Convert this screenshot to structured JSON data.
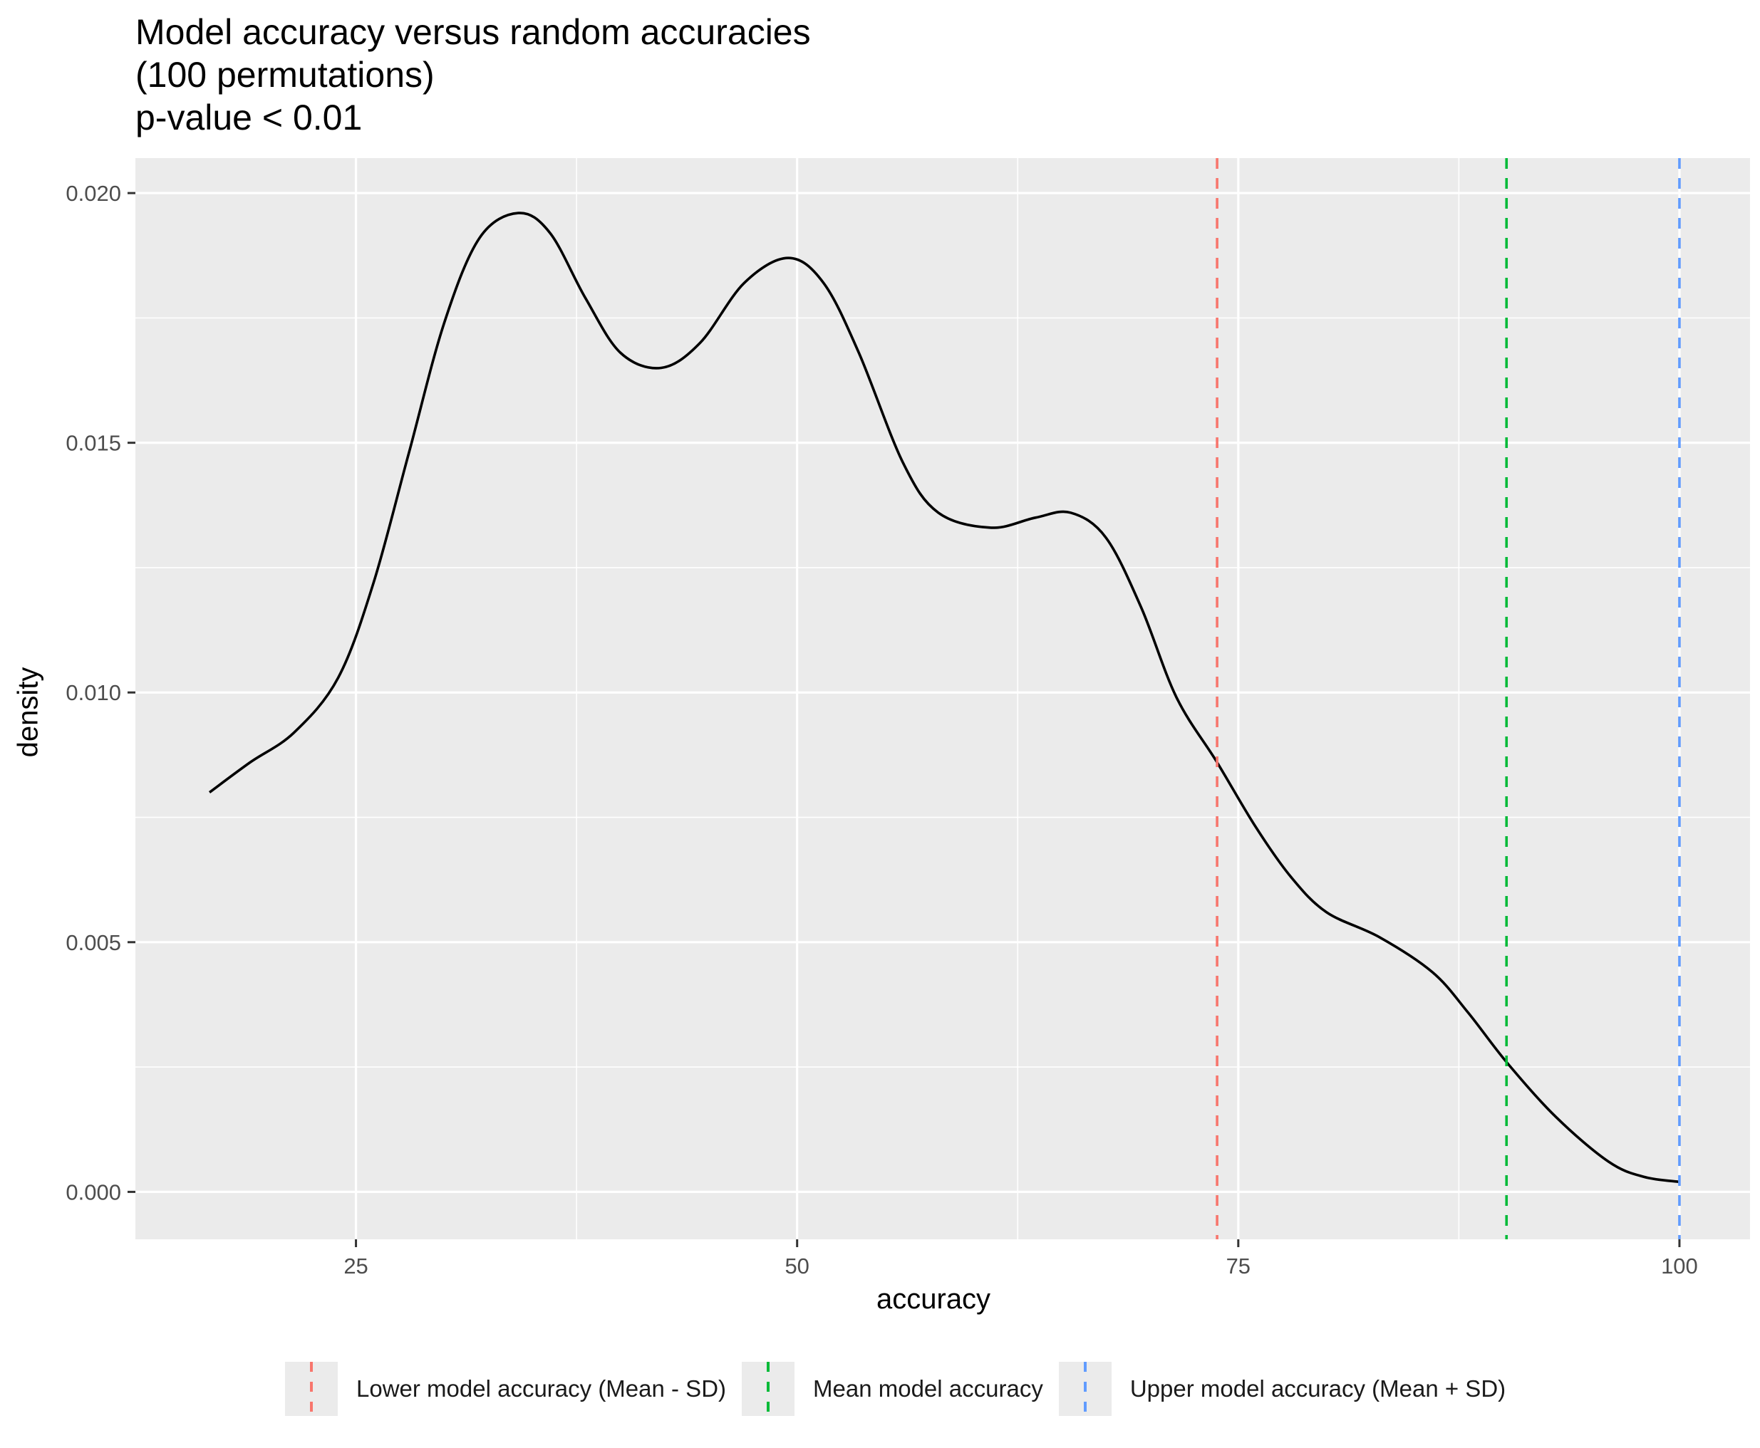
{
  "chart_data": {
    "type": "line",
    "title_lines": [
      "Model accuracy versus random accuracies",
      "(100 permutations)",
      "p-value < 0.01"
    ],
    "xlabel": "accuracy",
    "ylabel": "density",
    "xlim": [
      12.5,
      104
    ],
    "ylim": [
      -0.00095,
      0.0207
    ],
    "x_ticks": [
      25,
      50,
      75,
      100
    ],
    "x_tick_labels": [
      "25",
      "50",
      "75",
      "100"
    ],
    "y_ticks": [
      0.0,
      0.005,
      0.01,
      0.015,
      0.02
    ],
    "y_tick_labels": [
      "0.000",
      "0.005",
      "0.010",
      "0.015",
      "0.020"
    ],
    "grid": true,
    "legend_position": "bottom",
    "series": [
      {
        "color": "#000000",
        "x": [
          16.7,
          19,
          21.5,
          24,
          26,
          28,
          30,
          32,
          34.2,
          36,
          38,
          40,
          42.3,
          44.5,
          47,
          49.5,
          51.5,
          53.5,
          56,
          58,
          61,
          63.5,
          65.5,
          67.5,
          69.5,
          71.5,
          73.8,
          76,
          78,
          80,
          83,
          86,
          88,
          90.2,
          93,
          96,
          98,
          100
        ],
        "y": [
          0.008,
          0.0086,
          0.0092,
          0.0103,
          0.0122,
          0.0148,
          0.0174,
          0.0191,
          0.0196,
          0.0192,
          0.0179,
          0.0168,
          0.0165,
          0.017,
          0.0182,
          0.0187,
          0.0182,
          0.0168,
          0.0146,
          0.0136,
          0.0133,
          0.0135,
          0.0136,
          0.0131,
          0.0117,
          0.0099,
          0.0086,
          0.0073,
          0.0063,
          0.0056,
          0.0051,
          0.0044,
          0.0036,
          0.0026,
          0.0015,
          0.0006,
          0.0003,
          0.0002
        ]
      }
    ],
    "vlines": [
      {
        "name": "Lower model accuracy (Mean - SD)",
        "x": 73.8,
        "color": "#f8766d"
      },
      {
        "name": "Mean model accuracy",
        "x": 90.2,
        "color": "#00ba38"
      },
      {
        "name": "Upper model accuracy (Mean + SD)",
        "x": 100,
        "color": "#619cff"
      }
    ]
  }
}
